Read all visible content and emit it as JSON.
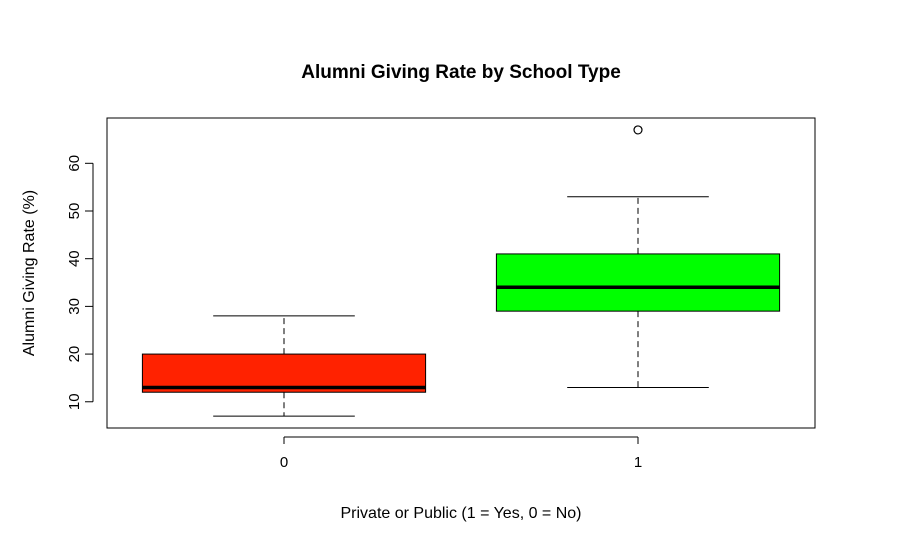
{
  "chart_data": {
    "type": "boxplot",
    "title": "Alumni Giving Rate by School Type",
    "xlabel": "Private or Public (1 = Yes, 0 = No)",
    "ylabel": "Alumni Giving Rate (%)",
    "ylim": [
      4.5,
      69.5
    ],
    "yticks": [
      10,
      20,
      30,
      40,
      50,
      60
    ],
    "grid": false,
    "categories": [
      "0",
      "1"
    ],
    "boxes": [
      {
        "category": "0",
        "color": "#ff2200",
        "whisker_low": 7,
        "q1": 12,
        "median": 13,
        "q3": 20,
        "whisker_high": 28,
        "outliers": []
      },
      {
        "category": "1",
        "color": "#00ff00",
        "whisker_low": 13,
        "q1": 29,
        "median": 34,
        "q3": 41,
        "whisker_high": 53,
        "outliers": [
          67
        ]
      }
    ]
  }
}
